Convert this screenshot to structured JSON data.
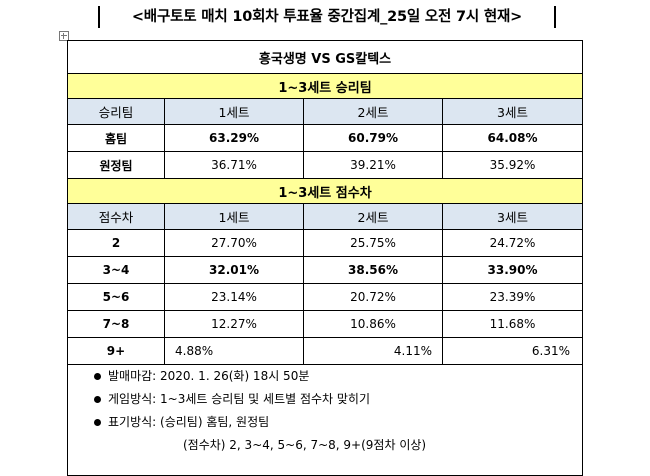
{
  "title": "<배구토토 매치 10회차 투표율 중간집계_25일 오전 7시 현재>",
  "match": "흥국생명 VS GS칼텍스",
  "section_win": "1~3세트 승리팀",
  "section_diff": "1~3세트 점수차",
  "win_table": {
    "header": [
      "승리팀",
      "1세트",
      "2세트",
      "3세트"
    ],
    "rows": [
      {
        "label": "홈팀",
        "values": [
          "63.29%",
          "60.79%",
          "64.08%"
        ]
      },
      {
        "label": "원정팀",
        "values": [
          "36.71%",
          "39.21%",
          "35.92%"
        ]
      }
    ]
  },
  "diff_table": {
    "header": [
      "점수차",
      "1세트",
      "2세트",
      "3세트"
    ],
    "rows": [
      {
        "label": "2",
        "values": [
          "27.70%",
          "25.75%",
          "24.72%"
        ]
      },
      {
        "label": "3~4",
        "values": [
          "32.01%",
          "38.56%",
          "33.90%"
        ]
      },
      {
        "label": "5~6",
        "values": [
          "23.14%",
          "20.72%",
          "23.39%"
        ]
      },
      {
        "label": "7~8",
        "values": [
          "12.27%",
          "10.86%",
          "11.68%"
        ]
      },
      {
        "label": "9+",
        "values": [
          "4.88%",
          "4.11%",
          "6.31%"
        ]
      }
    ]
  },
  "notes": [
    "발매마감: 2020. 1. 26(화) 18시 50분",
    "게임방식: 1~3세트 승리팀 및 세트별 점수차 맞히기",
    "표기방식: (승리팀) 홈팀, 원정팀",
    "(점수차) 2, 3~4, 5~6, 7~8, 9+(9점차 이상)"
  ]
}
